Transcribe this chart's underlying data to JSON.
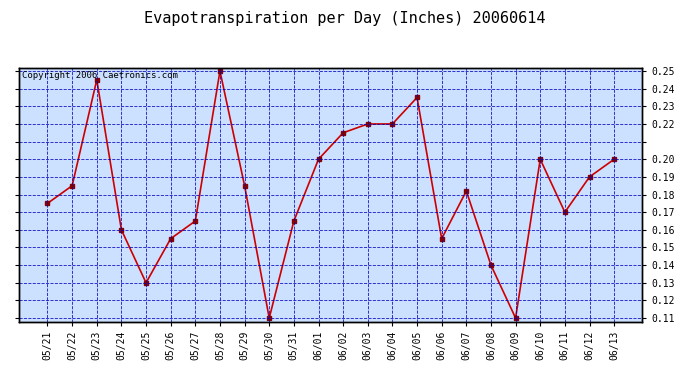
{
  "title": "Evapotranspiration per Day (Inches) 20060614",
  "copyright": "Copyright 2006 Caetronics.com",
  "x_labels": [
    "05/21",
    "05/22",
    "05/23",
    "05/24",
    "05/25",
    "05/26",
    "05/27",
    "05/28",
    "05/29",
    "05/30",
    "05/31",
    "06/01",
    "06/02",
    "06/03",
    "06/04",
    "06/05",
    "06/06",
    "06/07",
    "06/08",
    "06/09",
    "06/10",
    "06/11",
    "06/12",
    "06/13"
  ],
  "y_values": [
    0.175,
    0.185,
    0.245,
    0.16,
    0.13,
    0.155,
    0.165,
    0.25,
    0.185,
    0.11,
    0.165,
    0.2,
    0.215,
    0.22,
    0.22,
    0.235,
    0.155,
    0.182,
    0.14,
    0.11,
    0.2,
    0.17,
    0.19,
    0.2
  ],
  "line_color": "#cc0000",
  "marker_color": "#880000",
  "bg_color": "#ffffff",
  "plot_bg_color": "#cce0ff",
  "grid_color": "#0000bb",
  "ylim_min": 0.108,
  "ylim_max": 0.252,
  "yticks": [
    0.11,
    0.12,
    0.13,
    0.14,
    0.15,
    0.16,
    0.17,
    0.18,
    0.19,
    0.2,
    0.21,
    0.22,
    0.23,
    0.24,
    0.25
  ],
  "ytick_labels": [
    "0.11",
    "0.12",
    "0.13",
    "0.14",
    "0.15",
    "0.16",
    "0.17",
    "0.18",
    "0.19",
    "0.20",
    "",
    "0.22",
    "0.23",
    "0.24",
    "0.25"
  ],
  "title_fontsize": 11,
  "tick_fontsize": 7,
  "copyright_fontsize": 6.5
}
